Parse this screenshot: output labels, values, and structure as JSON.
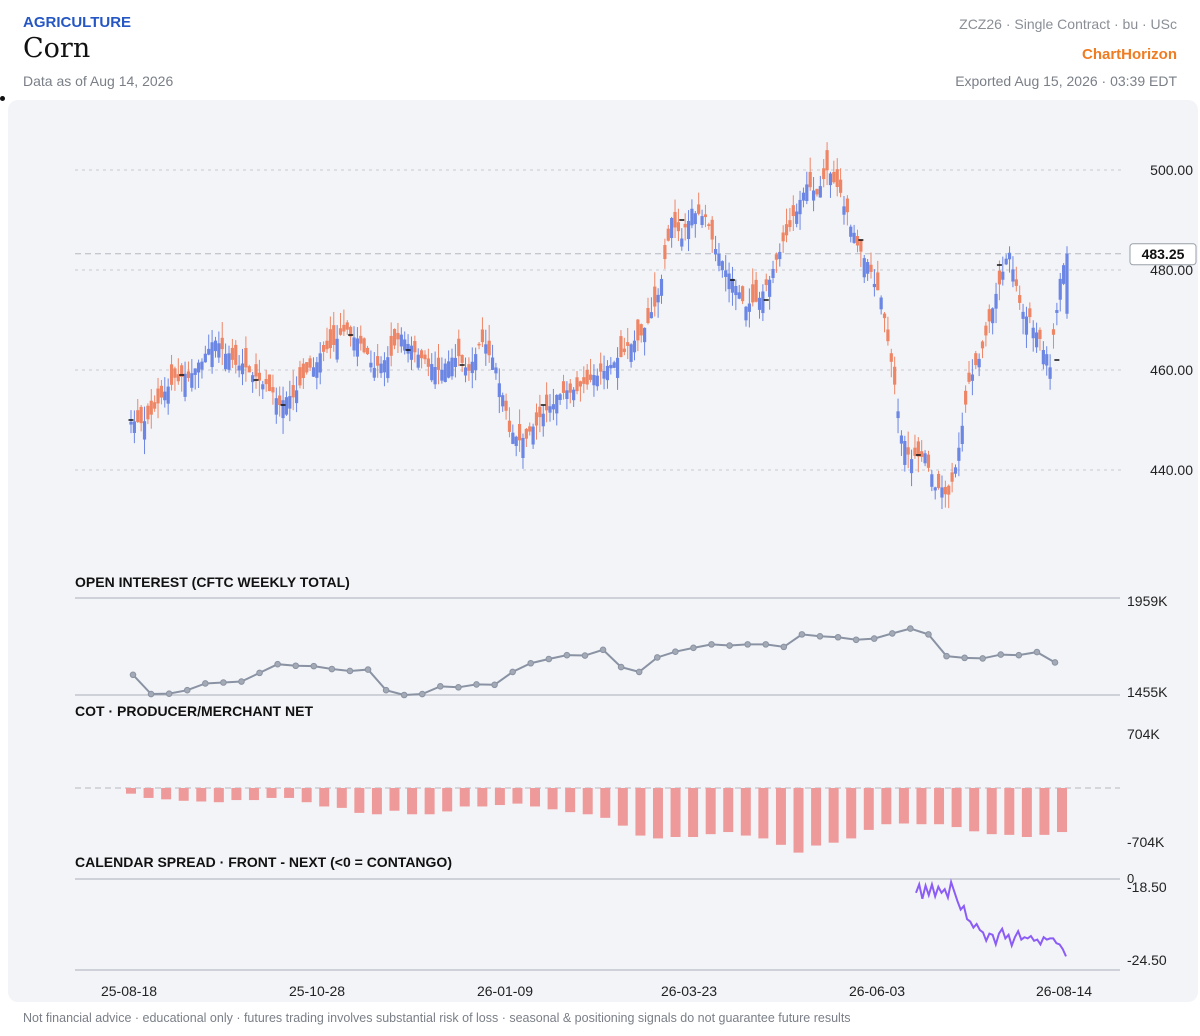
{
  "header": {
    "sector": "AGRICULTURE",
    "title": "Corn",
    "as_of": "Data as of Aug 14, 2026",
    "contract": "ZCZ26 · Single Contract · bu · USc",
    "brand": "ChartHorizon",
    "exported": "Exported Aug 15, 2026 · 03:39 EDT"
  },
  "footer": {
    "disclaimer": "Not financial advice · educational only · futures trading involves substantial risk of loss · seasonal & positioning signals do not guarantee future results"
  },
  "colors": {
    "up": "#6b86e3",
    "down": "#ee8666",
    "oi_line": "#8a93a3",
    "cot_bar": "#ef9a9a",
    "spread_line": "#8b5cf6",
    "grid": "#c7cad1"
  },
  "chart_data": [
    {
      "type": "candlestick",
      "name": "price",
      "ylim": [
        425,
        507
      ],
      "yticks": [
        440,
        460,
        480,
        500
      ],
      "ytick_labels": [
        "440.00",
        "460.00",
        "480.00",
        "500.00"
      ],
      "last_price_label": "483.25",
      "last_price": 483.25,
      "x_start": "2025-08-18",
      "x_end": "2026-08-14",
      "xtick_labels": [
        "25-08-18",
        "25-10-28",
        "26-01-09",
        "26-03-23",
        "26-06-03",
        "26-08-14"
      ],
      "close_anchors": [
        [
          0,
          450
        ],
        [
          3,
          449
        ],
        [
          6,
          451
        ],
        [
          10,
          456
        ],
        [
          13,
          458
        ],
        [
          17,
          459
        ],
        [
          20,
          461
        ],
        [
          25,
          466
        ],
        [
          30,
          462
        ],
        [
          35,
          460
        ],
        [
          40,
          457
        ],
        [
          44,
          453
        ],
        [
          48,
          455
        ],
        [
          52,
          459
        ],
        [
          56,
          463
        ],
        [
          60,
          465
        ],
        [
          64,
          468
        ],
        [
          68,
          465
        ],
        [
          72,
          461
        ],
        [
          76,
          462
        ],
        [
          80,
          467
        ],
        [
          84,
          464
        ],
        [
          88,
          461
        ],
        [
          92,
          460
        ],
        [
          96,
          463
        ],
        [
          100,
          460
        ],
        [
          104,
          466
        ],
        [
          108,
          461
        ],
        [
          112,
          448
        ],
        [
          116,
          446
        ],
        [
          120,
          449
        ],
        [
          124,
          453
        ],
        [
          128,
          456
        ],
        [
          132,
          456
        ],
        [
          136,
          458
        ],
        [
          140,
          460
        ],
        [
          144,
          462
        ],
        [
          148,
          465
        ],
        [
          152,
          468
        ],
        [
          156,
          475
        ],
        [
          160,
          490
        ],
        [
          163,
          486
        ],
        [
          166,
          492
        ],
        [
          170,
          490
        ],
        [
          174,
          483
        ],
        [
          178,
          478
        ],
        [
          182,
          473
        ],
        [
          186,
          474
        ],
        [
          190,
          480
        ],
        [
          194,
          487
        ],
        [
          197,
          492
        ],
        [
          200,
          497
        ],
        [
          203,
          495
        ],
        [
          206,
          500
        ],
        [
          210,
          495
        ],
        [
          214,
          487
        ],
        [
          218,
          481
        ],
        [
          222,
          474
        ],
        [
          225,
          462
        ],
        [
          228,
          447
        ],
        [
          231,
          442
        ],
        [
          235,
          443
        ],
        [
          238,
          437
        ],
        [
          242,
          435
        ],
        [
          245,
          444
        ],
        [
          248,
          458
        ],
        [
          252,
          464
        ],
        [
          255,
          472
        ],
        [
          258,
          480
        ],
        [
          260,
          484
        ],
        [
          263,
          473
        ],
        [
          266,
          470
        ],
        [
          269,
          466
        ],
        [
          272,
          461
        ],
        [
          275,
          478
        ],
        [
          277,
          483
        ]
      ],
      "markers": [
        [
          0,
          450
        ],
        [
          15,
          459
        ],
        [
          37,
          458
        ],
        [
          45,
          453
        ],
        [
          65,
          467
        ],
        [
          82,
          464
        ],
        [
          98,
          461
        ],
        [
          122,
          453
        ],
        [
          163,
          490
        ],
        [
          178,
          478
        ],
        [
          188,
          474
        ],
        [
          216,
          486
        ],
        [
          233,
          443
        ],
        [
          257,
          481
        ],
        [
          274,
          462
        ]
      ]
    },
    {
      "type": "line",
      "name": "open_interest",
      "title": "OPEN INTEREST (CFTC WEEKLY TOTAL)",
      "ylim": [
        1455,
        1959
      ],
      "ytick_labels": [
        "1959K",
        "1455K"
      ],
      "values": [
        1560,
        1460,
        1462,
        1480,
        1515,
        1520,
        1525,
        1570,
        1615,
        1607,
        1605,
        1590,
        1580,
        1587,
        1480,
        1455,
        1460,
        1500,
        1495,
        1510,
        1508,
        1575,
        1620,
        1642,
        1662,
        1660,
        1690,
        1600,
        1575,
        1650,
        1680,
        1700,
        1718,
        1712,
        1718,
        1718,
        1705,
        1770,
        1760,
        1755,
        1742,
        1748,
        1775,
        1800,
        1770,
        1657,
        1648,
        1645,
        1665,
        1662,
        1678,
        1624
      ]
    },
    {
      "type": "bar",
      "name": "cot_net",
      "title": "COT · PRODUCER/MERCHANT NET",
      "ylim": [
        -704,
        704
      ],
      "ytick_labels": [
        "704K",
        "-704K"
      ],
      "values": [
        -40,
        -70,
        -80,
        -90,
        -95,
        -100,
        -85,
        -85,
        -70,
        -70,
        -100,
        -130,
        -140,
        -175,
        -185,
        -160,
        -185,
        -185,
        -165,
        -130,
        -130,
        -120,
        -110,
        -130,
        -150,
        -170,
        -185,
        -210,
        -265,
        -335,
        -355,
        -345,
        -345,
        -325,
        -310,
        -335,
        -355,
        -400,
        -455,
        -405,
        -385,
        -355,
        -295,
        -255,
        -250,
        -255,
        -255,
        -275,
        -305,
        -325,
        -330,
        -345,
        -330,
        -310
      ]
    },
    {
      "type": "line",
      "name": "calendar_spread",
      "title": "CALENDAR SPREAD · FRONT - NEXT (<0 = CONTANGO)",
      "ylim": [
        -25,
        0
      ],
      "yticks": [
        0,
        -18.5,
        -24.5
      ],
      "ytick_labels": [
        "0",
        "-18.50",
        "-24.50"
      ],
      "values": [
        -18.9,
        -18.2,
        -19.4,
        -18.3,
        -19.1,
        -18.2,
        -19.2,
        -18.4,
        -18.9,
        -18.6,
        -19.3,
        -18.0,
        -18.8,
        -19.6,
        -20.3,
        -20.0,
        -21.1,
        -21.3,
        -21.8,
        -21.5,
        -22.0,
        -22.2,
        -22.9,
        -22.3,
        -22.4,
        -23.2,
        -22.3,
        -21.9,
        -22.7,
        -22.4,
        -23.3,
        -22.6,
        -22.1,
        -22.8,
        -22.6,
        -22.7,
        -22.5,
        -22.9,
        -22.8,
        -23.2,
        -22.6,
        -22.8,
        -22.7,
        -22.7,
        -23.1,
        -23.2,
        -23.6,
        -24.2
      ]
    }
  ]
}
